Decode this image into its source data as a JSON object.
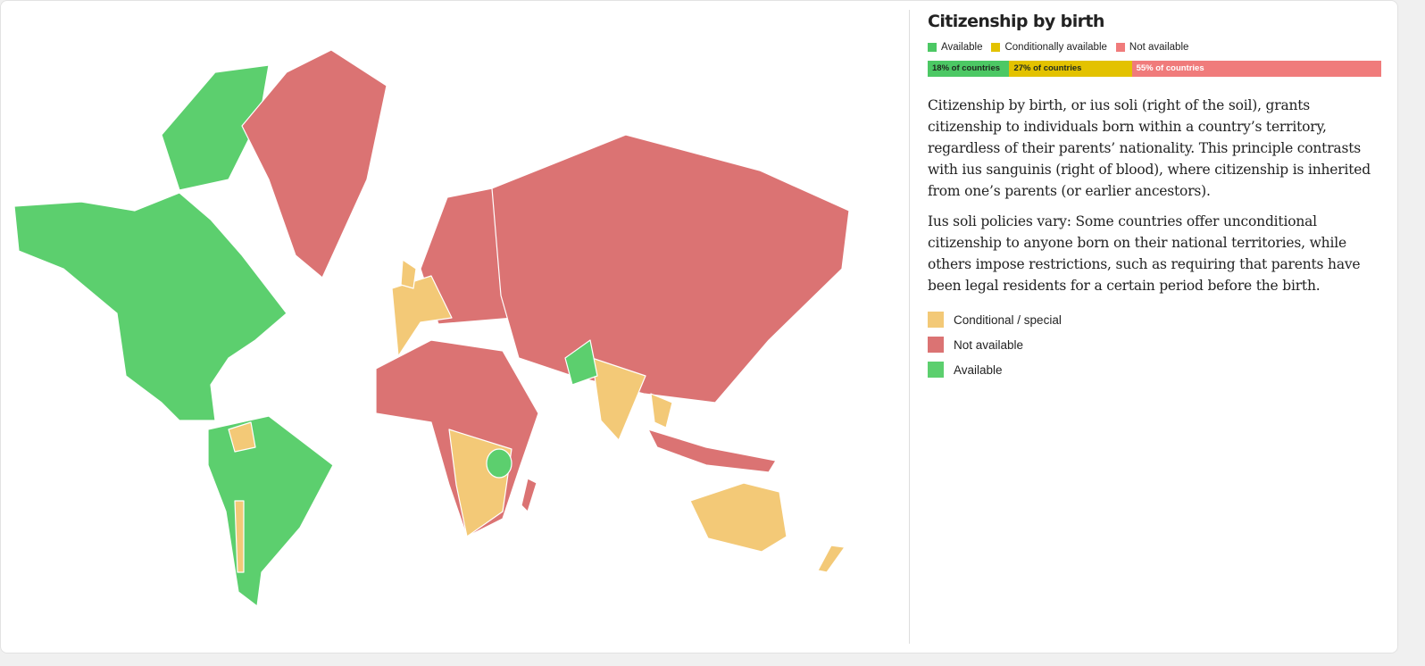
{
  "panel": {
    "title": "Citizenship by birth",
    "legend": [
      {
        "name": "Available",
        "color": "#4cc864"
      },
      {
        "name": "Conditionally available",
        "color": "#e3c200"
      },
      {
        "name": "Not available",
        "color": "#f07b7b"
      }
    ],
    "share_bar": {
      "values": [
        18,
        27,
        55
      ],
      "value_labels": [
        "18% of countries",
        "27% of countries",
        "55% of countries"
      ],
      "colors": [
        "#4cc864",
        "#e3c200",
        "#f07b7b"
      ]
    },
    "paragraphs": [
      "Citizenship by birth, or ius soli (right of the soil), grants citizenship to individuals born within a country’s territory, regardless of their parents’ nationality. This principle contrasts with ius sanguinis (right of blood), where citizenship is inherited from one’s parents (or earlier ancestors).",
      "Ius soli policies vary: Some countries offer unconditional citizenship to anyone born on their national territories, while others impose restrictions, such as requiring that parents have been legal residents for a certain period before the birth."
    ],
    "map_legend": [
      {
        "label": "Conditional / special",
        "color": "#f3c977"
      },
      {
        "label": "Not available",
        "color": "#db7373"
      },
      {
        "label": "Available",
        "color": "#5ccf6e"
      }
    ]
  }
}
